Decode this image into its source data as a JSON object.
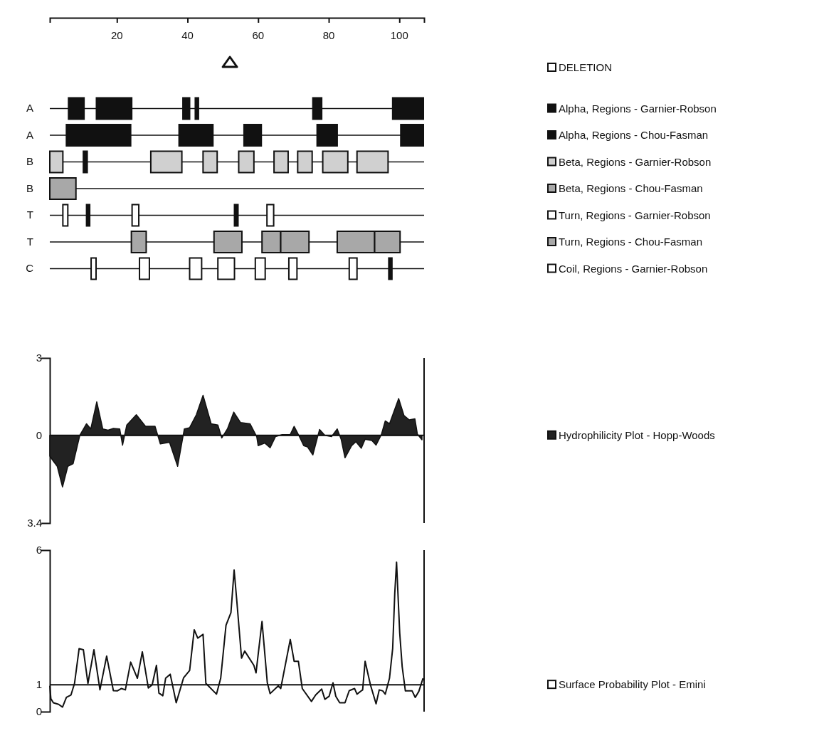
{
  "chart_data": [
    {
      "type": "bar",
      "orientation": "horizontal",
      "categories": [
        "A",
        "A",
        "B",
        "B",
        "T",
        "T",
        "C"
      ],
      "xlim": [
        1,
        107
      ],
      "xticks": [
        20,
        40,
        60,
        80,
        100
      ],
      "grid": "y",
      "annotations": [
        "DELETION",
        "Alpha, Regions - Garnier-Robson",
        "Alpha, Regions - Chou-Fasman",
        "Beta, Regions - Garnier-Robson",
        "Beta, Regions - Chou-Fasman",
        "Turn, Regions - Garnier-Robson",
        "Turn, Regions - Chou-Fasman",
        "Coil, Regions - Garnier-Robson"
      ],
      "series": [
        {
          "base": [
            6.3,
            5.7,
            1,
            1,
            4.7,
            24.1,
            12.7
          ],
          "values": [
            4.4,
            18.2,
            3.7,
            7.4,
            1.4,
            4.2,
            1.4
          ],
          "colors": [
            "#111111",
            "#111111",
            "#d0d0d0",
            "#a8a8a8",
            "#ffffff",
            "#a8a8a8",
            "#ffffff"
          ]
        },
        {
          "base": [
            14.2,
            37.6,
            10.5,
            null,
            11.4,
            47.5,
            26.4
          ],
          "values": [
            10,
            9.6,
            1.1,
            null,
            0.9,
            7.9,
            2.8
          ],
          "colors": [
            "#111111",
            "#111111",
            "#111111",
            null,
            "#111111",
            "#a8a8a8",
            "#ffffff"
          ]
        },
        {
          "base": [
            38.7,
            56,
            29.6,
            null,
            24.3,
            61.1,
            40.6
          ],
          "values": [
            1.9,
            4.9,
            8.8,
            null,
            1.9,
            5.3,
            3.4
          ],
          "colors": [
            "#111111",
            "#111111",
            "#d0d0d0",
            null,
            "#ffffff",
            "#a8a8a8",
            "#ffffff"
          ]
        },
        {
          "base": [
            42.2,
            76.7,
            44.4,
            null,
            53.3,
            66.4,
            48.6
          ],
          "values": [
            0.9,
            5.7,
            4,
            null,
            1,
            8,
            4.7
          ],
          "colors": [
            "#111111",
            "#111111",
            "#d0d0d0",
            null,
            "#111111",
            "#a8a8a8",
            "#ffffff"
          ]
        },
        {
          "base": [
            75.5,
            100.4,
            54.5,
            null,
            62.5,
            82.4,
            59.2
          ],
          "values": [
            2.5,
            6.4,
            4.3,
            null,
            1.9,
            10.6,
            2.8
          ],
          "colors": [
            "#111111",
            "#111111",
            "#d0d0d0",
            null,
            "#ffffff",
            "#a8a8a8",
            "#ffffff"
          ]
        },
        {
          "base": [
            98.1,
            null,
            64.5,
            null,
            null,
            93,
            68.7
          ],
          "values": [
            8.7,
            null,
            4,
            null,
            null,
            7.2,
            2.3
          ],
          "colors": [
            "#111111",
            null,
            "#d0d0d0",
            null,
            null,
            "#a8a8a8",
            "#ffffff"
          ]
        },
        {
          "base": [
            null,
            null,
            71.2,
            null,
            null,
            null,
            85.8
          ],
          "values": [
            null,
            null,
            4.1,
            null,
            null,
            null,
            2.2
          ],
          "colors": [
            null,
            null,
            "#d0d0d0",
            null,
            null,
            null,
            "#ffffff"
          ]
        },
        {
          "base": [
            null,
            null,
            78.3,
            null,
            null,
            null,
            97
          ],
          "values": [
            null,
            null,
            7.1,
            null,
            null,
            null,
            0.9
          ],
          "colors": [
            null,
            null,
            "#d0d0d0",
            null,
            null,
            null,
            "#111111"
          ]
        },
        {
          "base": [
            null,
            null,
            88,
            null,
            null,
            null,
            null
          ],
          "values": [
            null,
            null,
            8.8,
            null,
            null,
            null,
            null
          ],
          "colors": [
            null,
            null,
            "#d0d0d0",
            null,
            null,
            null,
            null
          ]
        }
      ]
    },
    {
      "type": "area",
      "xlim": [
        1,
        107
      ],
      "ylim": [
        -3.4,
        3
      ],
      "yticks": [
        3,
        0,
        {
          "value": -3.4,
          "label": "3.4"
        }
      ],
      "tick_labels": "y",
      "color": "#222222",
      "ref_lines": [
        {
          "axis": "y",
          "value": 0
        }
      ],
      "annotations": [
        "Hydrophilicity Plot - Hopp-Woods"
      ],
      "x": [
        1,
        2,
        3.1,
        4.6,
        6.1,
        7.6,
        9.5,
        11.4,
        12.6,
        14.3,
        16,
        17.5,
        19,
        20.8,
        21.6,
        22.8,
        25.5,
        28.1,
        30.8,
        32.3,
        34.9,
        37.2,
        39.1,
        40.6,
        42.5,
        44.4,
        46.7,
        48.6,
        49.7,
        51.3,
        53.1,
        55,
        57.7,
        59.6,
        60,
        61.9,
        63.4,
        64.9,
        66.8,
        69.1,
        70.2,
        71.7,
        72.9,
        74,
        75.5,
        77.4,
        78.9,
        80.8,
        82.4,
        83.5,
        84.6,
        86.5,
        87.7,
        89.2,
        90.3,
        92.2,
        93.4,
        94.9,
        96,
        97.2,
        99.8,
        101.3,
        102.8,
        104.4,
        105.1,
        106.4
      ],
      "values": [
        -0.8,
        -1,
        -1.2,
        -2,
        -1.2,
        -1.1,
        0,
        0.45,
        0.25,
        1.3,
        0.25,
        0.2,
        0.27,
        0.25,
        -0.38,
        0.4,
        0.8,
        0.35,
        0.35,
        -0.33,
        -0.27,
        -1.2,
        0.25,
        0.3,
        0.8,
        1.55,
        0.45,
        0.4,
        -0.1,
        0.25,
        0.9,
        0.5,
        0.45,
        -0.05,
        -0.4,
        -0.3,
        -0.48,
        -0.05,
        0.03,
        0.03,
        0.35,
        -0.05,
        -0.4,
        -0.45,
        -0.76,
        0.23,
        0,
        -0.05,
        0.25,
        -0.15,
        -0.87,
        -0.4,
        -0.25,
        -0.5,
        -0.15,
        -0.2,
        -0.38,
        0.03,
        0.56,
        0.45,
        1.43,
        0.77,
        0.6,
        0.64,
        0.05,
        -0.17
      ]
    },
    {
      "type": "line",
      "xlim": [
        1,
        107
      ],
      "ylim": [
        0,
        6
      ],
      "yticks": [
        6,
        1,
        0
      ],
      "tick_labels": "y",
      "color": "#111111",
      "ref_lines": [
        {
          "axis": "y",
          "value": 1
        }
      ],
      "annotations": [
        "Surface Probability Plot - Emini"
      ],
      "x": [
        1,
        1.3,
        2,
        3.5,
        4.6,
        5.7,
        7,
        8,
        9.3,
        10.5,
        11.8,
        13.5,
        15.2,
        17.1,
        19,
        20.1,
        21.3,
        22.4,
        23.9,
        25.8,
        27.2,
        28.9,
        30,
        31.2,
        31.9,
        33,
        33.8,
        35.1,
        36.8,
        38.9,
        40.6,
        41.9,
        42.9,
        44.4,
        45.2,
        48.2,
        49.4,
        50.9,
        52.3,
        53.2,
        53.9,
        55.3,
        56.2,
        58.8,
        59.4,
        61.1,
        62.6,
        63.4,
        65.7,
        66.4,
        69.1,
        70.2,
        71.4,
        72.5,
        75.1,
        76.3,
        78,
        78.9,
        80.1,
        81.2,
        82,
        83.1,
        84.6,
        85.8,
        87.3,
        88,
        89.6,
        90.3,
        91.8,
        93.4,
        94.3,
        95.3,
        96,
        97.2,
        98.1,
        98.7,
        99.2,
        100.1,
        100.8,
        101.7,
        103.6,
        104.5,
        105.5,
        106.7
      ],
      "values": [
        0.96,
        0.48,
        0.33,
        0.27,
        0.17,
        0.53,
        0.62,
        1.05,
        2.34,
        2.3,
        1.05,
        2.3,
        0.81,
        2.06,
        0.78,
        0.77,
        0.86,
        0.81,
        1.84,
        1.24,
        2.22,
        0.88,
        1,
        1.72,
        0.69,
        0.59,
        1.24,
        1.39,
        0.33,
        1.26,
        1.53,
        3.04,
        2.73,
        2.87,
        1.05,
        0.65,
        1.24,
        3.21,
        3.68,
        5.26,
        4.21,
        1.99,
        2.25,
        1.72,
        1.44,
        3.35,
        1.07,
        0.67,
        0.96,
        0.86,
        2.68,
        1.87,
        1.87,
        0.86,
        0.38,
        0.62,
        0.84,
        0.46,
        0.57,
        1.07,
        0.57,
        0.33,
        0.33,
        0.78,
        0.86,
        0.65,
        0.81,
        1.87,
        1,
        0.29,
        0.81,
        0.77,
        0.65,
        1.24,
        2.34,
        4.4,
        5.55,
        2.92,
        1.67,
        0.77,
        0.77,
        0.53,
        0.75,
        1.24
      ]
    }
  ]
}
